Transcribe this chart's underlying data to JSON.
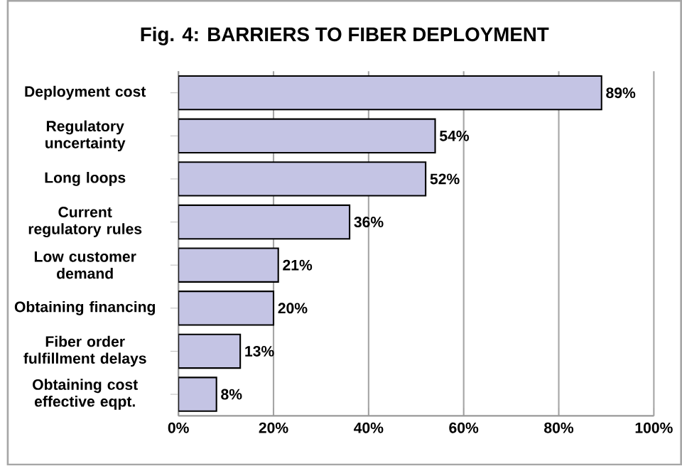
{
  "chart_data": {
    "type": "bar",
    "orientation": "horizontal",
    "title": "Fig. 4: BARRIERS TO FIBER DEPLOYMENT",
    "categories": [
      "Deployment cost",
      "Regulatory uncertainty",
      "Long loops",
      "Current regulatory rules",
      "Low customer demand",
      "Obtaining financing",
      "Fiber order fulfillment delays",
      "Obtaining cost effective eqpt."
    ],
    "values": [
      89,
      54,
      52,
      36,
      21,
      20,
      13,
      8
    ],
    "value_labels": [
      "89%",
      "54%",
      "52%",
      "36%",
      "21%",
      "20%",
      "13%",
      "8%"
    ],
    "color": "#c4c4e4",
    "xlim": [
      0,
      100
    ],
    "xticks": [
      {
        "value": 0,
        "label": "0%"
      },
      {
        "value": 20,
        "label": "20%"
      },
      {
        "value": 40,
        "label": "40%"
      },
      {
        "value": 60,
        "label": "60%"
      },
      {
        "value": 80,
        "label": "80%"
      },
      {
        "value": 100,
        "label": "100%"
      }
    ],
    "grid": "x"
  }
}
